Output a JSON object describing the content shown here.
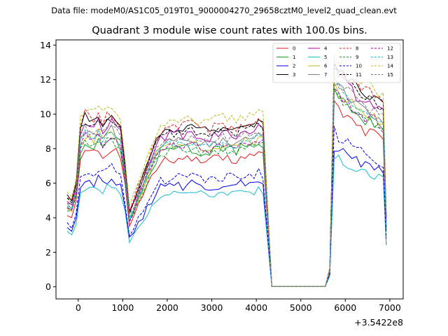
{
  "suptitle": "Data file: modeM0/AS1C05_019T01_9000004270_29658cztM0_level2_quad_clean.evt",
  "chart_data": {
    "type": "line",
    "title": "Quadrant 3 module wise count rates with 100.0s bins.",
    "xlabel": "",
    "ylabel": "",
    "x_offset_label": "+3.5422e8",
    "xlim": [
      -500,
      7300
    ],
    "ylim": [
      -0.7,
      14.3
    ],
    "xticks": [
      "0",
      "1000",
      "2000",
      "3000",
      "4000",
      "5000",
      "6000",
      "7000"
    ],
    "yticks": [
      "0",
      "2",
      "4",
      "6",
      "8",
      "10",
      "12",
      "14"
    ],
    "legend_position": "top-right",
    "gaps": [
      [
        4300,
        5550
      ]
    ],
    "segments": [
      {
        "x": [
          -250,
          6900
        ],
        "points": [
          [
            -250,
            4.5
          ],
          [
            -150,
            4.3
          ],
          [
            -50,
            5.2
          ],
          [
            50,
            8.0
          ],
          [
            150,
            8.5
          ],
          [
            250,
            8.3
          ],
          [
            350,
            8.2
          ],
          [
            450,
            8.5
          ],
          [
            550,
            8.1
          ],
          [
            650,
            8.4
          ],
          [
            750,
            8.6
          ],
          [
            850,
            8.3
          ],
          [
            950,
            8.0
          ],
          [
            1050,
            6.2
          ],
          [
            1150,
            3.8
          ],
          [
            1250,
            4.3
          ],
          [
            1350,
            5.0
          ],
          [
            1450,
            5.5
          ],
          [
            1550,
            6.2
          ],
          [
            1650,
            6.8
          ],
          [
            1750,
            7.3
          ],
          [
            1850,
            7.7
          ],
          [
            1950,
            7.8
          ],
          [
            2050,
            7.9
          ],
          [
            2150,
            7.8
          ],
          [
            2250,
            8.0
          ],
          [
            2350,
            7.9
          ],
          [
            2450,
            8.0
          ],
          [
            2550,
            8.0
          ],
          [
            2650,
            7.9
          ],
          [
            2750,
            7.8
          ],
          [
            2850,
            7.8
          ],
          [
            2950,
            7.7
          ],
          [
            3050,
            7.9
          ],
          [
            3150,
            7.9
          ],
          [
            3250,
            8.0
          ],
          [
            3350,
            7.9
          ],
          [
            3450,
            7.9
          ],
          [
            3550,
            7.8
          ],
          [
            3650,
            8.0
          ],
          [
            3750,
            8.1
          ],
          [
            3850,
            8.0
          ],
          [
            3950,
            8.1
          ],
          [
            4050,
            8.2
          ],
          [
            4150,
            8.1
          ],
          [
            4250,
            4.0
          ],
          [
            4350,
            0.02
          ],
          [
            5550,
            0.02
          ],
          [
            5650,
            0.9
          ],
          [
            5750,
            11.2
          ],
          [
            5850,
            10.9
          ],
          [
            5950,
            10.6
          ],
          [
            6050,
            10.4
          ],
          [
            6150,
            10.2
          ],
          [
            6250,
            10.0
          ],
          [
            6350,
            9.8
          ],
          [
            6450,
            9.6
          ],
          [
            6550,
            9.5
          ],
          [
            6650,
            9.4
          ],
          [
            6750,
            9.2
          ],
          [
            6850,
            9.0
          ],
          [
            6920,
            3.5
          ]
        ]
      }
    ],
    "series": [
      {
        "name": "0",
        "color": "#e41a1c",
        "dash": "solid",
        "offset": -0.5,
        "noise": 0.25
      },
      {
        "name": "1",
        "color": "#1b9e2b",
        "dash": "solid",
        "offset": 0.0,
        "noise": 0.3
      },
      {
        "name": "2",
        "color": "#0000ee",
        "dash": "solid",
        "offset": -2.1,
        "noise": 0.3
      },
      {
        "name": "3",
        "color": "#000000",
        "dash": "solid",
        "offset": 1.3,
        "noise": 0.25
      },
      {
        "name": "4",
        "color": "#b000b0",
        "dash": "solid",
        "offset": 0.9,
        "noise": 0.3
      },
      {
        "name": "5",
        "color": "#17becf",
        "dash": "solid",
        "offset": -2.5,
        "noise": 0.25
      },
      {
        "name": "6",
        "color": "#bcbd22",
        "dash": "solid",
        "offset": 0.3,
        "noise": 0.3
      },
      {
        "name": "7",
        "color": "#7f7f7f",
        "dash": "solid",
        "offset": 0.5,
        "noise": 0.25
      },
      {
        "name": "8",
        "color": "#e41a1c",
        "dash": "dashed",
        "offset": 1.4,
        "noise": 0.3
      },
      {
        "name": "9",
        "color": "#1b9e2b",
        "dash": "dashed",
        "offset": 0.0,
        "noise": 0.3
      },
      {
        "name": "10",
        "color": "#0000ee",
        "dash": "dashed",
        "offset": -1.6,
        "noise": 0.3
      },
      {
        "name": "11",
        "color": "#000000",
        "dash": "dashed",
        "offset": 1.1,
        "noise": 0.25
      },
      {
        "name": "12",
        "color": "#b000b0",
        "dash": "dashed",
        "offset": 0.2,
        "noise": 0.3
      },
      {
        "name": "13",
        "color": "#17becf",
        "dash": "dashed",
        "offset": 0.4,
        "noise": 0.25
      },
      {
        "name": "14",
        "color": "#bcbd22",
        "dash": "dashed",
        "offset": 1.8,
        "noise": 0.3
      },
      {
        "name": "15",
        "color": "#7f7f7f",
        "dash": "dashed",
        "offset": 0.7,
        "noise": 0.25
      }
    ]
  }
}
